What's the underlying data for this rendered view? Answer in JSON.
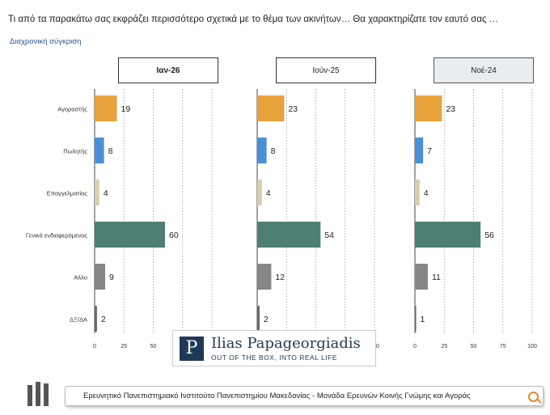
{
  "question": "Τι από τα παρακάτω σας εκφράζει περισσότερο σχετικά με το θέμα των ακινήτων… Θα χαρακτηρίζατε τον εαυτό σας …",
  "subtitle": "Διαχρονική σύγκριση",
  "logo": {
    "name": "Ilias Papageorgiadis",
    "tagline": "OUT OF THE BOX, INTO REAL LIFE",
    "emblem": "P"
  },
  "footer": "Ερευνητικό Πανεπιστημιακό Ινστιτούτο Πανεπιστημίου Μακεδονίας - Μονάδα Ερευνών Κοινής Γνώμης και Αγοράς",
  "chart_data": {
    "type": "bar",
    "orientation": "horizontal",
    "categories": [
      "Αγοραστής",
      "Πωλητής",
      "Επαγγελματίας",
      "Γενικά ενδιαφερόμενος",
      "Άλλο",
      "ΔΞ/ΔΑ"
    ],
    "category_colors": [
      "#e8a23c",
      "#4a90d9",
      "#d9ccb0",
      "#4e7f74",
      "#878787",
      "#666666"
    ],
    "xlim": [
      0,
      100
    ],
    "xticks": [
      "0",
      "25",
      "50",
      "75",
      "100"
    ],
    "panels": [
      {
        "title": "Ιαν-26",
        "values": [
          19,
          8,
          4,
          60,
          9,
          2
        ]
      },
      {
        "title": "Ιούν-25",
        "values": [
          23,
          8,
          4,
          54,
          12,
          2
        ]
      },
      {
        "title": "Νοέ-24",
        "values": [
          23,
          7,
          4,
          56,
          11,
          1
        ]
      }
    ]
  }
}
